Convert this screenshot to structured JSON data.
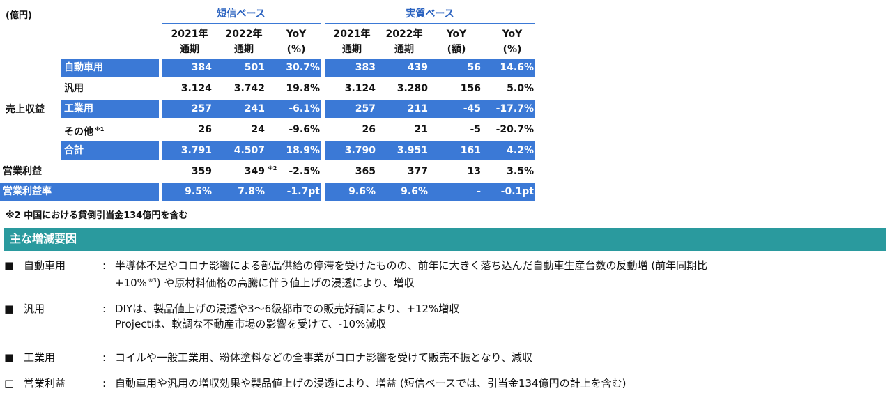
{
  "unit": "(億円)",
  "groups": [
    {
      "title": "短信ベース",
      "columns": [
        [
          "2021年",
          "通期"
        ],
        [
          "2022年",
          "通期"
        ],
        [
          "YoY",
          "(%)"
        ]
      ]
    },
    {
      "title": "実質ベース",
      "columns": [
        [
          "2021年",
          "通期"
        ],
        [
          "2022年",
          "通期"
        ],
        [
          "YoY",
          "(額)"
        ],
        [
          "YoY",
          "(%)"
        ]
      ]
    }
  ],
  "row_group_label": "売上収益",
  "rows": [
    {
      "label": "自動車用",
      "cells": [
        "384",
        "501",
        "30.7%",
        "383",
        "439",
        "56",
        "14.6%"
      ]
    },
    {
      "label": "汎用",
      "cells": [
        "3.124",
        "3.742",
        "19.8%",
        "3.124",
        "3.280",
        "156",
        "5.0%"
      ]
    },
    {
      "label": "工業用",
      "cells": [
        "257",
        "241",
        "-6.1%",
        "257",
        "211",
        "-45",
        "-17.7%"
      ]
    },
    {
      "label": "その他",
      "note": "※1",
      "cells": [
        "26",
        "24",
        "-9.6%",
        "26",
        "21",
        "-5",
        "-20.7%"
      ]
    },
    {
      "label": "合計",
      "cells": [
        "3.791",
        "4.507",
        "18.9%",
        "3.790",
        "3.951",
        "161",
        "4.2%"
      ]
    },
    {
      "label": "営業利益",
      "cells": [
        "359",
        {
          "text": "349",
          "note": "※2"
        },
        "-2.5%",
        "365",
        "377",
        "13",
        "3.5%"
      ]
    },
    {
      "label": "営業利益率",
      "cells": [
        "9.5%",
        "7.8%",
        "-1.7pt",
        "9.6%",
        "9.6%",
        "-",
        "-0.1pt"
      ]
    }
  ],
  "footnote": "※2 中国における貸倒引当金134億円を含む",
  "section": {
    "title": "主な増減要因",
    "items": [
      {
        "marker": "■",
        "label": "自動車用",
        "colon": ":",
        "lines": [
          {
            "text": "半導体不足やコロナ影響による部品供給の停滞を受けたものの、前年に大きく落ち込んだ自動車生産台数の反動増 (前年同期比"
          },
          {
            "text": "+10%",
            "note": "※3",
            "rest": ") や原材料価格の高騰に伴う値上げの浸透により、増収"
          }
        ]
      },
      {
        "marker": "■",
        "label": "汎用",
        "colon": ":",
        "lines": [
          {
            "text": "DIYは、製品値上げの浸透や3～6級都市での販売好調により、+12%増収"
          },
          {
            "text": "Projectは、軟調な不動産市場の影響を受けて、-10%減収"
          }
        ]
      },
      {
        "marker": "■",
        "label": "工業用",
        "colon": ":",
        "lines": [
          {
            "text": "コイルや一般工業用、粉体塗料などの全事業がコロナ影響を受けて販売不振となり、減収"
          }
        ]
      },
      {
        "marker": "□",
        "label": "営業利益",
        "colon": ":",
        "lines": [
          {
            "text": "自動車用や汎用の増収効果や製品値上げの浸透により、増益 (短信ベースでは、引当金134億円の計上を含む)"
          }
        ]
      }
    ]
  }
}
